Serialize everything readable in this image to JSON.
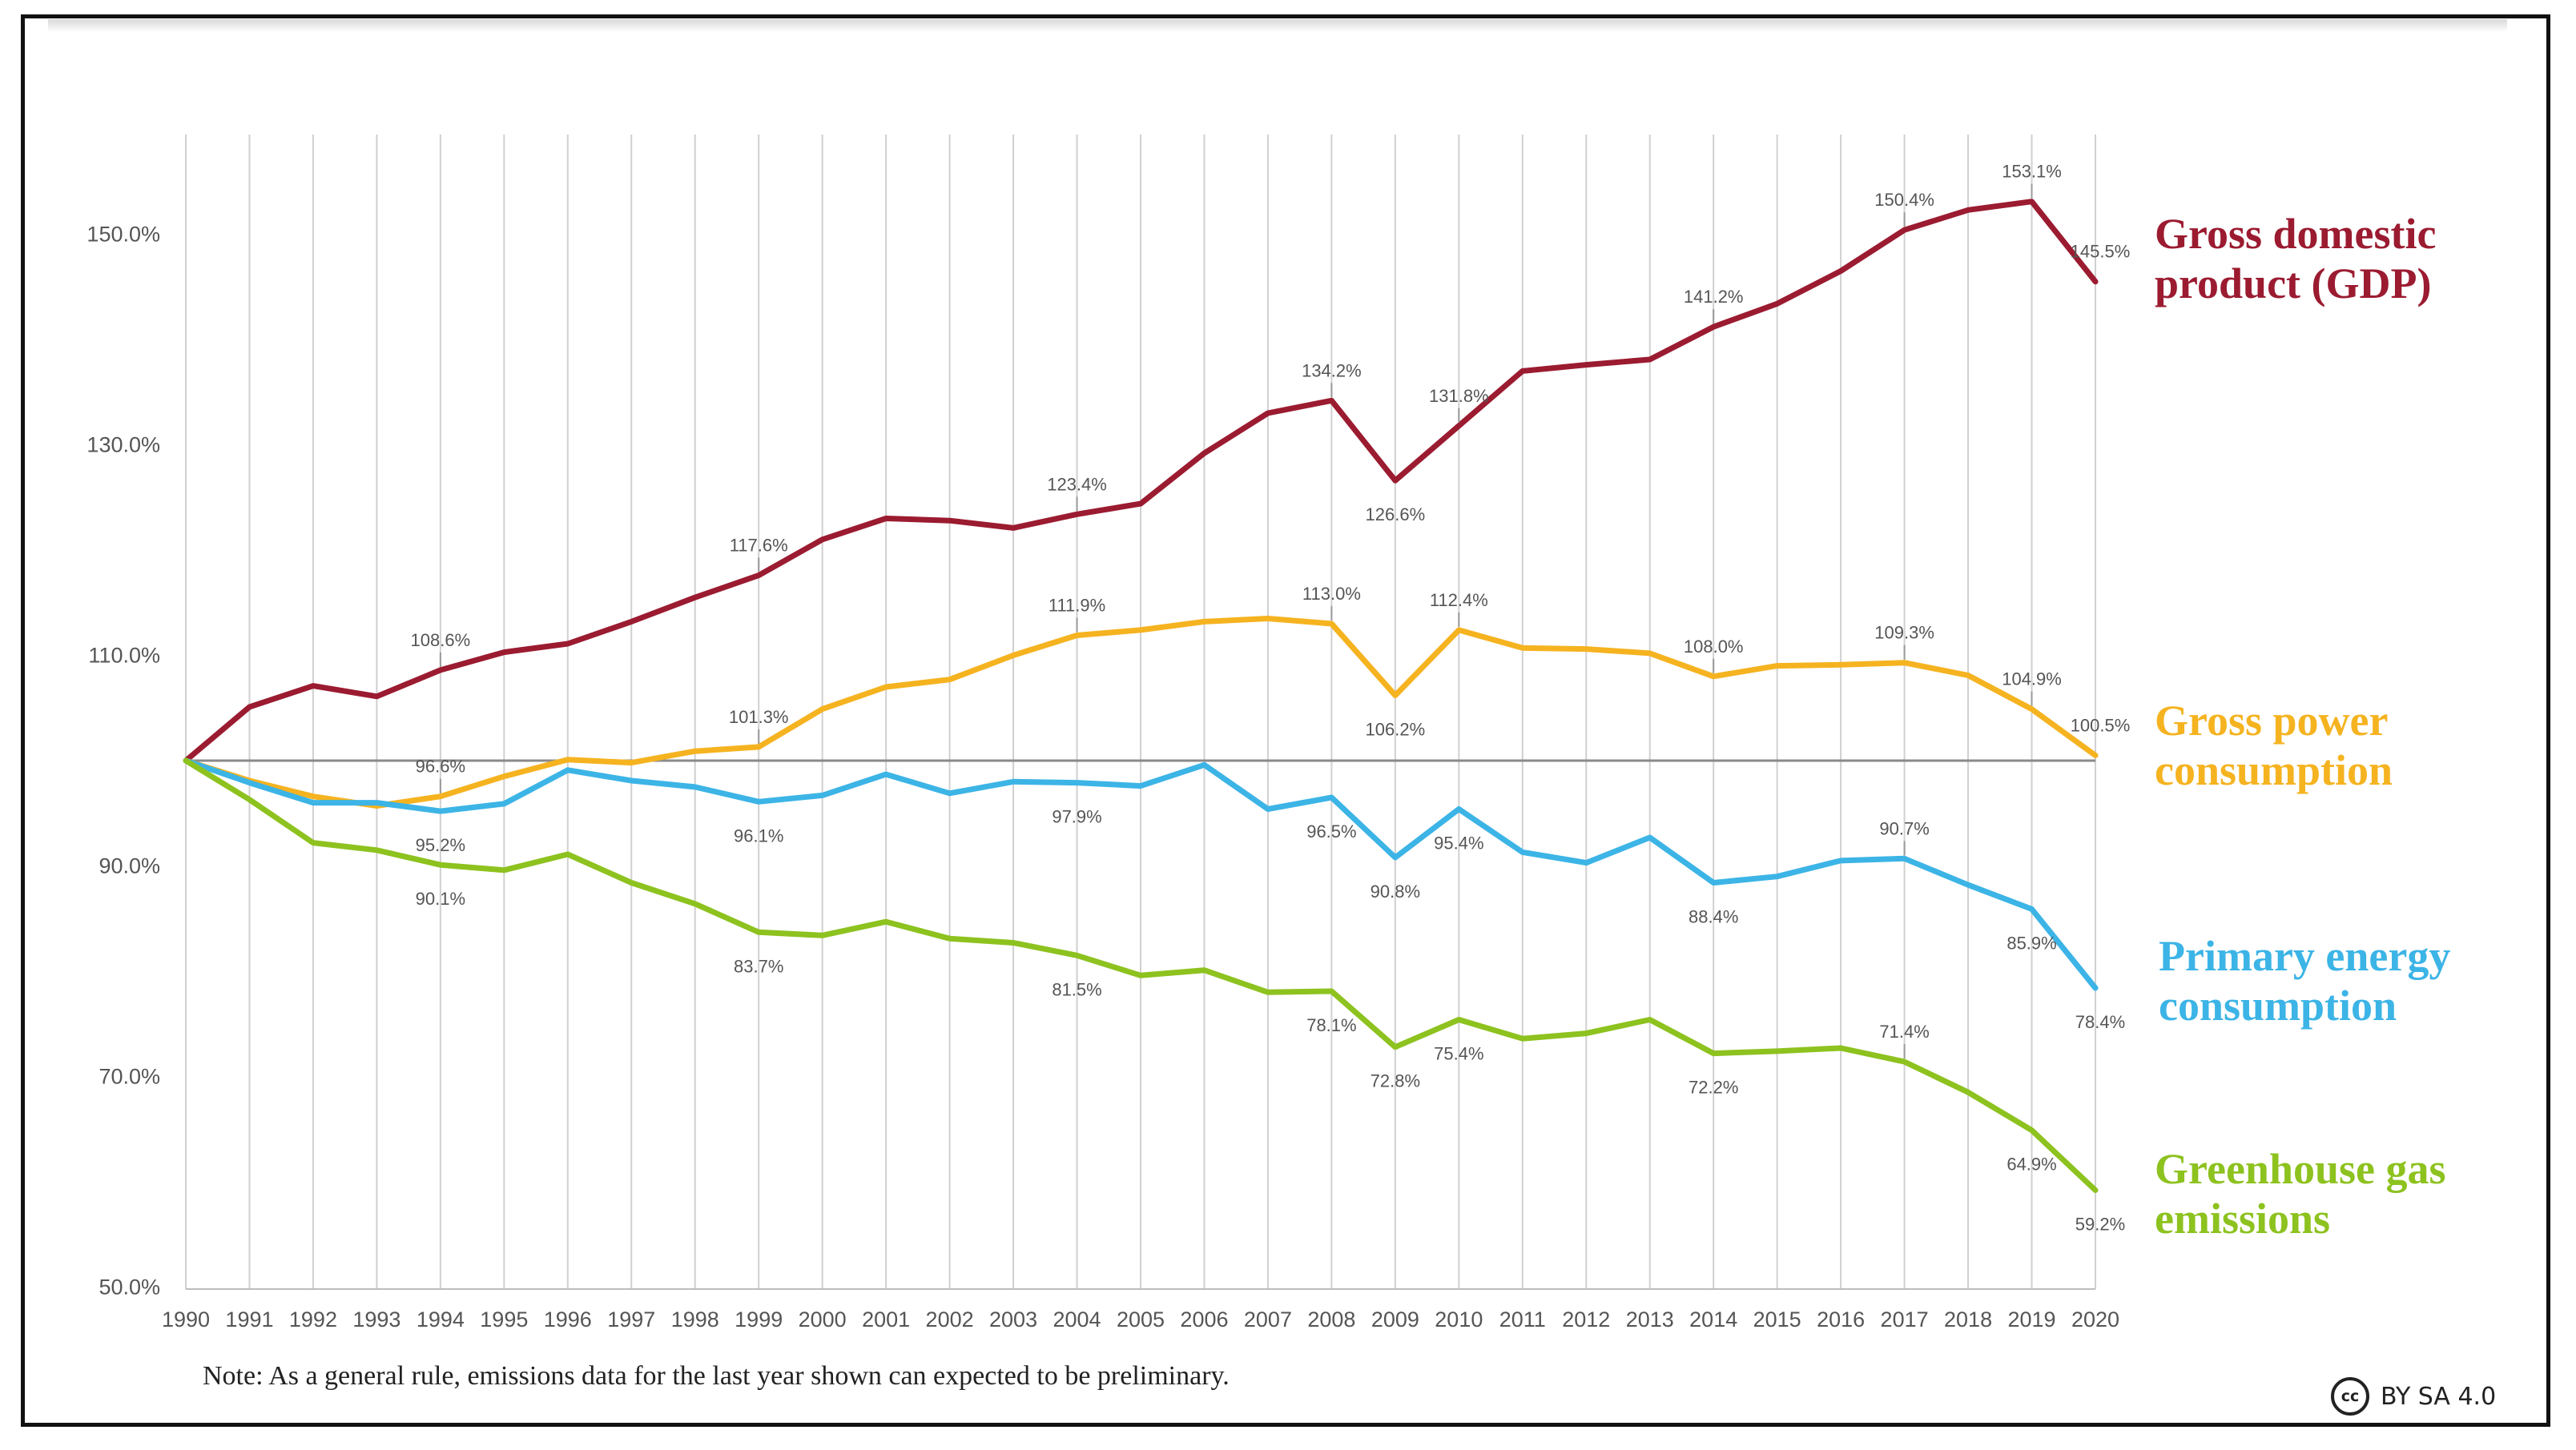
{
  "chart_data": {
    "type": "line",
    "title": "",
    "xlabel": "",
    "ylabel": "",
    "categories": [
      "1990",
      "1991",
      "1992",
      "1993",
      "1994",
      "1995",
      "1996",
      "1997",
      "1998",
      "1999",
      "2000",
      "2001",
      "2002",
      "2003",
      "2004",
      "2005",
      "2006",
      "2007",
      "2008",
      "2009",
      "2010",
      "2011",
      "2012",
      "2013",
      "2014",
      "2015",
      "2016",
      "2017",
      "2018",
      "2019",
      "2020"
    ],
    "y_ticks": [
      "50.0%",
      "70.0%",
      "90.0%",
      "110.0%",
      "130.0%",
      "150.0%"
    ],
    "y_tick_values": [
      50,
      70,
      90,
      110,
      130,
      150
    ],
    "ylim": [
      50,
      161
    ],
    "reference_line": 100,
    "series": [
      {
        "name": "Gross domestic product (GDP)",
        "legend_lines": [
          "Gross domestic",
          "product (GDP)"
        ],
        "color": "#9b1b30",
        "values": [
          100,
          105.1,
          107.1,
          106.1,
          108.6,
          110.3,
          111.1,
          113.2,
          115.5,
          117.6,
          121.0,
          123.0,
          122.8,
          122.1,
          123.4,
          124.4,
          129.2,
          133.0,
          134.2,
          126.6,
          131.8,
          137.0,
          137.6,
          138.1,
          141.2,
          143.4,
          146.5,
          150.4,
          152.3,
          153.1,
          145.5
        ],
        "labels": [
          {
            "year": "1994",
            "text": "108.6%",
            "pos": "above"
          },
          {
            "year": "1999",
            "text": "117.6%",
            "pos": "above"
          },
          {
            "year": "2004",
            "text": "123.4%",
            "pos": "above"
          },
          {
            "year": "2008",
            "text": "134.2%",
            "pos": "above"
          },
          {
            "year": "2009",
            "text": "126.6%",
            "pos": "below"
          },
          {
            "year": "2010",
            "text": "131.8%",
            "pos": "above"
          },
          {
            "year": "2014",
            "text": "141.2%",
            "pos": "above"
          },
          {
            "year": "2017",
            "text": "150.4%",
            "pos": "above"
          },
          {
            "year": "2019",
            "text": "153.1%",
            "pos": "above"
          },
          {
            "year": "2020",
            "text": "145.5%",
            "pos": "above"
          }
        ]
      },
      {
        "name": "Gross power consumption",
        "legend_lines": [
          "Gross power",
          "consumption"
        ],
        "color": "#f5b320",
        "values": [
          100,
          98.1,
          96.6,
          95.7,
          96.6,
          98.5,
          100.1,
          99.8,
          100.9,
          101.3,
          104.9,
          107.0,
          107.7,
          110.0,
          111.9,
          112.4,
          113.2,
          113.5,
          113.0,
          106.2,
          112.4,
          110.7,
          110.6,
          110.2,
          108.0,
          109.0,
          109.1,
          109.3,
          108.1,
          104.9,
          100.5
        ],
        "labels": [
          {
            "year": "1994",
            "text": "96.6%",
            "pos": "above"
          },
          {
            "year": "1999",
            "text": "101.3%",
            "pos": "above"
          },
          {
            "year": "2004",
            "text": "111.9%",
            "pos": "above"
          },
          {
            "year": "2008",
            "text": "113.0%",
            "pos": "above"
          },
          {
            "year": "2009",
            "text": "106.2%",
            "pos": "below"
          },
          {
            "year": "2010",
            "text": "112.4%",
            "pos": "above"
          },
          {
            "year": "2014",
            "text": "108.0%",
            "pos": "above"
          },
          {
            "year": "2017",
            "text": "109.3%",
            "pos": "above"
          },
          {
            "year": "2019",
            "text": "104.9%",
            "pos": "above"
          },
          {
            "year": "2020",
            "text": "100.5%",
            "pos": "above"
          }
        ]
      },
      {
        "name": "Primary energy consumption",
        "legend_lines": [
          "Primary energy",
          "consumption"
        ],
        "color": "#3cb4e6",
        "values": [
          100,
          97.9,
          96.0,
          96.0,
          95.2,
          95.9,
          99.1,
          98.1,
          97.5,
          96.1,
          96.7,
          98.7,
          96.9,
          98.0,
          97.9,
          97.6,
          99.6,
          95.4,
          96.5,
          90.8,
          95.4,
          91.3,
          90.3,
          92.7,
          88.4,
          89.0,
          90.5,
          90.7,
          88.2,
          85.9,
          78.4
        ],
        "labels": [
          {
            "year": "1994",
            "text": "95.2%",
            "pos": "below"
          },
          {
            "year": "1999",
            "text": "96.1%",
            "pos": "below"
          },
          {
            "year": "2004",
            "text": "97.9%",
            "pos": "below"
          },
          {
            "year": "2008",
            "text": "96.5%",
            "pos": "below"
          },
          {
            "year": "2009",
            "text": "90.8%",
            "pos": "below"
          },
          {
            "year": "2010",
            "text": "95.4%",
            "pos": "below"
          },
          {
            "year": "2014",
            "text": "88.4%",
            "pos": "below"
          },
          {
            "year": "2017",
            "text": "90.7%",
            "pos": "above"
          },
          {
            "year": "2019",
            "text": "85.9%",
            "pos": "below"
          },
          {
            "year": "2020",
            "text": "78.4%",
            "pos": "below"
          }
        ]
      },
      {
        "name": "Greenhouse gas emissions",
        "legend_lines": [
          "Greenhouse gas",
          "emissions"
        ],
        "color": "#8dc21f",
        "values": [
          100,
          96.3,
          92.2,
          91.5,
          90.1,
          89.6,
          91.1,
          88.4,
          86.4,
          83.7,
          83.4,
          84.7,
          83.1,
          82.7,
          81.5,
          79.6,
          80.1,
          78.0,
          78.1,
          72.8,
          75.4,
          73.6,
          74.1,
          75.4,
          72.2,
          72.4,
          72.7,
          71.4,
          68.5,
          64.9,
          59.2
        ],
        "labels": [
          {
            "year": "1994",
            "text": "90.1%",
            "pos": "below"
          },
          {
            "year": "1999",
            "text": "83.7%",
            "pos": "below"
          },
          {
            "year": "2004",
            "text": "81.5%",
            "pos": "below"
          },
          {
            "year": "2008",
            "text": "78.1%",
            "pos": "below"
          },
          {
            "year": "2009",
            "text": "72.8%",
            "pos": "below"
          },
          {
            "year": "2010",
            "text": "75.4%",
            "pos": "below"
          },
          {
            "year": "2014",
            "text": "72.2%",
            "pos": "below"
          },
          {
            "year": "2017",
            "text": "71.4%",
            "pos": "above"
          },
          {
            "year": "2019",
            "text": "64.9%",
            "pos": "below"
          },
          {
            "year": "2020",
            "text": "59.2%",
            "pos": "below"
          }
        ]
      }
    ]
  },
  "note": "Note: As a general rule, emissions data for the last year shown can expected to be preliminary.",
  "license": {
    "icon": "cc",
    "text": "BY SA 4.0"
  },
  "colors": {
    "gridline": "#d0d0d0",
    "reference_line": "#8a8a8a"
  }
}
